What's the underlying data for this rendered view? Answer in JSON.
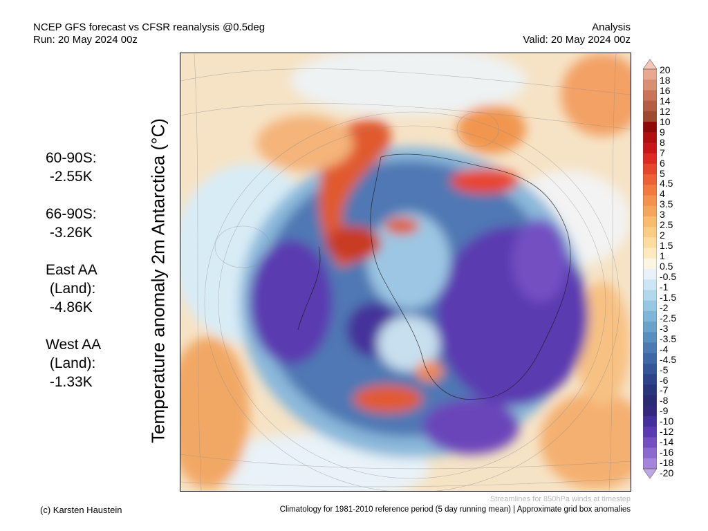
{
  "header": {
    "title_line1": "NCEP GFS forecast vs CFSR reanalysis @0.5deg",
    "title_line2": "Run: 20 May 2024 00z",
    "right_line1": "Analysis",
    "right_line2": "Valid: 20 May 2024 00z"
  },
  "stats": [
    {
      "lines": [
        "60-90S:",
        " -2.55K"
      ]
    },
    {
      "lines": [
        "66-90S:",
        " -3.26K"
      ]
    },
    {
      "lines": [
        "East AA",
        " (Land):",
        " -4.86K"
      ]
    },
    {
      "lines": [
        "West AA",
        " (Land):",
        " -1.33K"
      ]
    }
  ],
  "map": {
    "ylabel": "Temperature anomaly 2m Antarctica (°C)",
    "description_colors": {
      "warm": "#d9402c",
      "cold": "#5a3ab0",
      "neutral": "#f3f3f3"
    }
  },
  "colorbar": {
    "labels": [
      "20",
      "18",
      "16",
      "14",
      "12",
      "10",
      "9",
      "8",
      "7",
      "6",
      "5",
      "4.5",
      "4",
      "3.5",
      "3",
      "2.5",
      "2",
      "1.5",
      "1",
      "0.5",
      "-0.5",
      "-1",
      "-1.5",
      "-2",
      "-2.5",
      "-3",
      "-3.5",
      "-4",
      "-4.5",
      "-5",
      "-6",
      "-7",
      "-8",
      "-9",
      "-10",
      "-12",
      "-14",
      "-16",
      "-18",
      "-20"
    ],
    "colors": [
      "#f5c6b6",
      "#e8a98f",
      "#d98f72",
      "#c97458",
      "#b55d42",
      "#9e4a30",
      "#8e0a0a",
      "#b00f12",
      "#c8171a",
      "#dc2a24",
      "#e5472d",
      "#ec6135",
      "#f07a3f",
      "#f4914c",
      "#f6a65c",
      "#f9bb6e",
      "#fbcd84",
      "#fcdd9f",
      "#fdebbf",
      "#fbf6e4",
      "#e8f2f8",
      "#cde6f3",
      "#b2d8ec",
      "#97c8e2",
      "#7fb5d6",
      "#6aa2ca",
      "#598fbe",
      "#4b7bb2",
      "#3f67a5",
      "#355598",
      "#2d448a",
      "#28367c",
      "#2a2b72",
      "#34287e",
      "#44309a",
      "#5a3ab0",
      "#7350c2",
      "#8b69cf",
      "#a585db",
      "#c0a6e6"
    ]
  },
  "footer": {
    "streamlines": "Streamlines for 850hPa winds at timestep",
    "credit": "(c) Karsten Haustein",
    "climatology": "Climatology for 1981-2010 reference period (5 day running mean) | Approximate grid box anomalies"
  }
}
